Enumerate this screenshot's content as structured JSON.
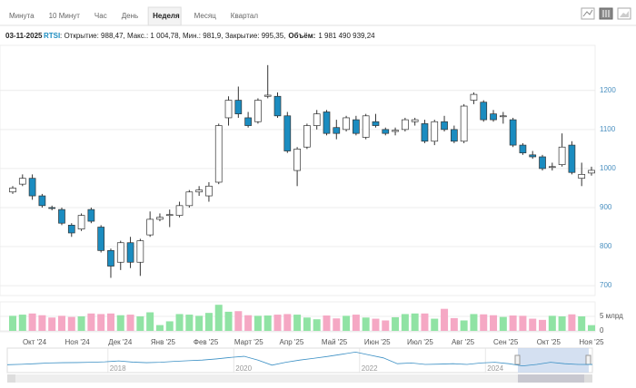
{
  "toolbar": {
    "tabs": [
      "Минута",
      "10 Минут",
      "Час",
      "День",
      "Неделя",
      "Месяц",
      "Квартал"
    ],
    "active": 4
  },
  "info": {
    "date": "03-11-2025",
    "ticker": "RTSI",
    "text": ": Открытие: 988,47, Макс.: 1 004,78, Мин.: 981,9, Закрытие: 995,35,",
    "volume_label": "Объём:",
    "volume_value": "1 981 490 939,24"
  },
  "chart_data": [
    {
      "type": "candlestick",
      "up_color": "#ffffff",
      "down_color": "#1b8cc0",
      "categories": [
        "Окт '24",
        "Ноя '24",
        "Дек '24",
        "Янв '25",
        "Фев '25",
        "Март '25",
        "Апр '25",
        "Май '25",
        "Июн '25",
        "Июл '25",
        "Авг '25",
        "Сен '25",
        "Окт '25",
        "Ноя '25"
      ],
      "open": [
        940,
        960,
        975,
        930,
        900,
        895,
        855,
        845,
        895,
        850,
        790,
        760,
        810,
        760,
        830,
        870,
        880,
        880,
        905,
        940,
        930,
        965,
        1130,
        1175,
        1130,
        1120,
        1185,
        1185,
        1135,
        995,
        1055,
        1110,
        1145,
        1105,
        1100,
        1125,
        1080,
        1120,
        1100,
        1095,
        1100,
        1120,
        1115,
        1070,
        1120,
        1100,
        1070,
        1175,
        1170,
        1140,
        1135,
        1125,
        1060,
        1035,
        1030,
        1005,
        1010,
        1060,
        975,
        988.47
      ],
      "high": [
        955,
        985,
        985,
        935,
        905,
        900,
        860,
        885,
        900,
        855,
        795,
        815,
        825,
        820,
        890,
        885,
        895,
        915,
        945,
        955,
        965,
        1115,
        1185,
        1210,
        1145,
        1180,
        1265,
        1195,
        1145,
        1055,
        1115,
        1150,
        1150,
        1125,
        1135,
        1135,
        1140,
        1140,
        1105,
        1105,
        1130,
        1130,
        1125,
        1125,
        1135,
        1110,
        1165,
        1195,
        1175,
        1150,
        1145,
        1130,
        1065,
        1045,
        1035,
        1015,
        1090,
        1070,
        1015,
        1004.78
      ],
      "low": [
        935,
        955,
        920,
        900,
        893,
        855,
        825,
        840,
        860,
        785,
        720,
        740,
        745,
        725,
        825,
        865,
        850,
        875,
        900,
        930,
        915,
        960,
        1110,
        1130,
        1105,
        1115,
        1180,
        1130,
        1040,
        955,
        1050,
        1100,
        1085,
        1075,
        1095,
        1085,
        1075,
        1105,
        1085,
        1085,
        1095,
        1110,
        1065,
        1060,
        1095,
        1065,
        1065,
        1165,
        1120,
        1120,
        1115,
        1055,
        1035,
        1025,
        995,
        995,
        1005,
        985,
        955,
        981.9
      ],
      "close": [
        950,
        975,
        930,
        905,
        898,
        860,
        835,
        880,
        865,
        790,
        750,
        810,
        760,
        815,
        870,
        875,
        882,
        905,
        940,
        945,
        955,
        1110,
        1175,
        1140,
        1110,
        1175,
        1188,
        1135,
        1045,
        1050,
        1110,
        1140,
        1090,
        1090,
        1130,
        1090,
        1135,
        1110,
        1090,
        1098,
        1125,
        1125,
        1070,
        1120,
        1100,
        1070,
        1160,
        1190,
        1125,
        1125,
        1135,
        1060,
        1040,
        1030,
        1000,
        1005,
        1055,
        990,
        985,
        995.35
      ],
      "ylim": [
        677,
        1311
      ],
      "yticks": [
        700,
        800,
        900,
        1000,
        1100,
        1200
      ],
      "grid": true
    },
    {
      "type": "bar",
      "up_color": "#90e3a4",
      "down_color": "#f5a8c4",
      "values": [
        5.2,
        5.6,
        6,
        5.4,
        4.6,
        5.2,
        4.8,
        5,
        6,
        5.8,
        6,
        5.4,
        5.6,
        5,
        6.4,
        2,
        3.3,
        5.8,
        5.6,
        5.2,
        6.2,
        9,
        6.6,
        6.8,
        5.4,
        5.2,
        5.3,
        5.6,
        5.8,
        5.6,
        4.6,
        4,
        5.3,
        4.3,
        5.2,
        5.6,
        4.6,
        4.2,
        3.6,
        4.7,
        5.8,
        6,
        6,
        4.2,
        7.6,
        4.4,
        3.6,
        5.8,
        5.7,
        5.4,
        4.8,
        5.3,
        5.2,
        4.2,
        3.8,
        5.2,
        5,
        5.7,
        5,
        1.98
      ],
      "ylim": [
        0,
        10
      ],
      "yticks": [
        0,
        {
          "value": 5,
          "label": "5 млрд"
        }
      ]
    },
    {
      "type": "line",
      "color": "#3a8fc4",
      "values": [
        980,
        1010,
        1050,
        1100,
        1120,
        1130,
        1150,
        1180,
        1240,
        1160,
        1120,
        1150,
        1210,
        1260,
        1300,
        1380,
        1480,
        1560,
        1300,
        950,
        1150,
        1300,
        1420,
        1550,
        1700,
        1850,
        1650,
        1450,
        1050,
        1100,
        1000,
        1020,
        1050,
        1000,
        1100,
        1150,
        1050,
        900,
        1000,
        1150,
        1050,
        1000,
        995.35
      ],
      "xlim": [
        2016.4,
        2025.7
      ],
      "ylim": [
        500,
        2000
      ],
      "xticks": [
        2018,
        2020,
        2022,
        2024
      ]
    }
  ]
}
